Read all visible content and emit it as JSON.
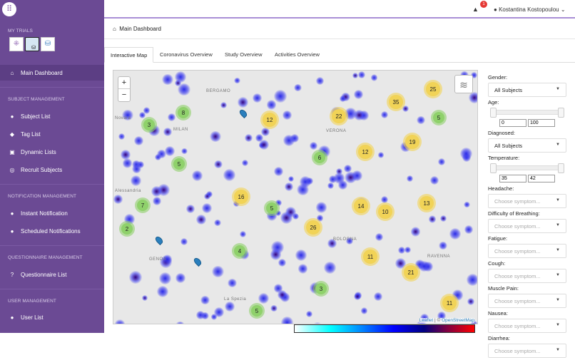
{
  "sidebar": {
    "my_trials_label": "MY TRIALS",
    "main_dashboard": "Main Dashboard",
    "subject_management": "SUBJECT MANAGEMENT",
    "subject_list": "Subject List",
    "tag_list": "Tag List",
    "dynamic_lists": "Dynamic Lists",
    "recruit_subjects": "Recruit Subjects",
    "notification_management": "NOTIFICATION MANAGEMENT",
    "instant_notification": "Instant Notification",
    "scheduled_notifications": "Scheduled Notifications",
    "questionnaire_management": "QUESTIONNAIRE MANAGEMENT",
    "questionnaire_list": "Questionnaire List",
    "user_management": "USER MANAGEMENT",
    "user_list": "User List"
  },
  "header": {
    "notification_count": "1",
    "user_name": "Kostantina Kostopoulou"
  },
  "breadcrumb": "Main Dashboard",
  "tabs": [
    "Interactive Map",
    "Coronavirus Overview",
    "Study Overview",
    "Activities Overview"
  ],
  "map": {
    "cities": [
      "BERGAMO",
      "MILAN",
      "Novara",
      "Alessandria",
      "GENOA",
      "La Spezia",
      "VERONA",
      "BOLOGNA",
      "RAVENNA"
    ],
    "clusters": [
      8,
      3,
      12,
      22,
      35,
      25,
      5,
      19,
      12,
      6,
      5,
      16,
      5,
      7,
      14,
      10,
      13,
      2,
      26,
      4,
      11,
      21,
      3,
      11,
      5
    ],
    "attribution_leaflet": "Leaflet",
    "attribution_sep": " | © ",
    "attribution_osm": "OpenStreetMap",
    "colors": {
      "small_cluster": "#8fd16b",
      "large_cluster": "#f1d357",
      "heat": "#3a3ae0"
    }
  },
  "filters": {
    "gender_label": "Gender:",
    "gender_value": "All Subjects",
    "age_label": "Age:",
    "age_min": "0",
    "age_max": "100",
    "diagnosed_label": "Diagnosed:",
    "diagnosed_value": "All Subjects",
    "temperature_label": "Temperature:",
    "temp_min": "35",
    "temp_max": "42",
    "symptom_placeholder": "Choose symptom...",
    "symptoms": [
      "Headache:",
      "Difficulty of Breathing:",
      "Fatigue:",
      "Cough:",
      "Muscle Pain:",
      "Nausea:",
      "Diarrhea:"
    ]
  }
}
